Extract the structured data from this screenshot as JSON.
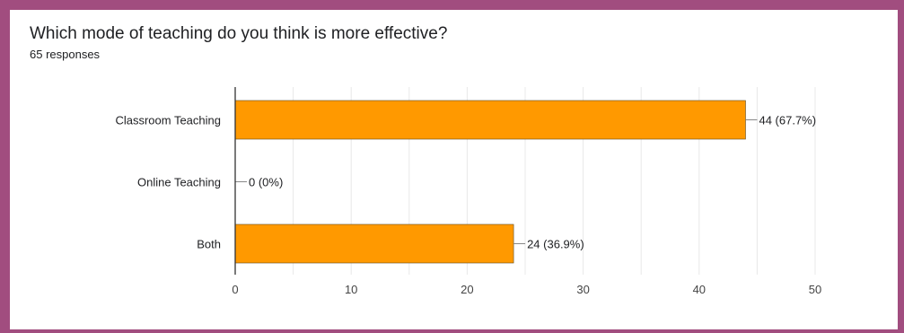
{
  "question": {
    "title": "Which mode of teaching do you think is more effective?",
    "responses": "65 responses"
  },
  "colors": {
    "frame_border": "#a14d7f",
    "bar": "#ff9900",
    "bar_outline": "#5f4a1e",
    "grid": "#e8e8e8",
    "axis": "#333333"
  },
  "chart_data": {
    "type": "bar",
    "orientation": "horizontal",
    "title": "Which mode of teaching do you think is more effective?",
    "subtitle": "65 responses",
    "categories": [
      "Classroom Teaching",
      "Online Teaching",
      "Both"
    ],
    "values": [
      44,
      0,
      24
    ],
    "value_labels": [
      "44 (67.7%)",
      "0 (0%)",
      "24 (36.9%)"
    ],
    "xlim": [
      0,
      50
    ],
    "xticks": [
      0,
      10,
      20,
      30,
      40,
      50
    ],
    "xticks_minor": [
      5,
      15,
      25,
      35,
      45
    ],
    "grid": true,
    "legend": "none",
    "xlabel": "",
    "ylabel": ""
  }
}
